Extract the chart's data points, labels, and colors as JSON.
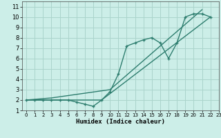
{
  "xlabel": "Humidex (Indice chaleur)",
  "bg_color": "#cceee8",
  "line_color": "#2d7d6e",
  "grid_color": "#aad4cc",
  "xlim": [
    -0.5,
    23
  ],
  "ylim": [
    1,
    11.5
  ],
  "xticks": [
    0,
    1,
    2,
    3,
    4,
    5,
    6,
    7,
    8,
    9,
    10,
    11,
    12,
    13,
    14,
    15,
    16,
    17,
    18,
    19,
    20,
    21,
    22,
    23
  ],
  "yticks": [
    1,
    2,
    3,
    4,
    5,
    6,
    7,
    8,
    9,
    10,
    11
  ],
  "line1_x": [
    0,
    1,
    2,
    3,
    4,
    5,
    6,
    7,
    8,
    9,
    10,
    11,
    12,
    13,
    14,
    15,
    16,
    17,
    18,
    19,
    20,
    21,
    22
  ],
  "line1_y": [
    2,
    2,
    2,
    2,
    2,
    2,
    1.8,
    1.6,
    1.4,
    2,
    2.8,
    4.5,
    7.2,
    7.5,
    7.8,
    8.0,
    7.5,
    6.0,
    7.5,
    10.0,
    10.3,
    10.3,
    10.0
  ],
  "line2_x": [
    0,
    3,
    9,
    22
  ],
  "line2_y": [
    2,
    2,
    2,
    10
  ],
  "line3_x": [
    0,
    3,
    10,
    21
  ],
  "line3_y": [
    2,
    2.2,
    3,
    10.7
  ]
}
